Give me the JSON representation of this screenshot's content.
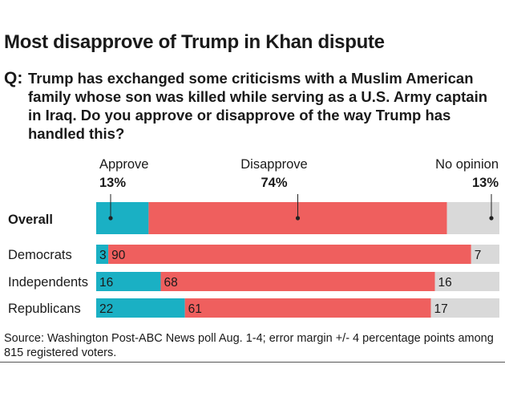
{
  "title": "Most disapprove of Trump in Khan dispute",
  "question": {
    "label": "Q:",
    "text": "Trump has exchanged some criticisms with a Muslim American family whose son was killed while serving as a U.S. Army captain in Iraq. Do you approve or disapprove of the way Trump has handled this?"
  },
  "chart_data": {
    "type": "bar",
    "orientation": "horizontal",
    "stacked": true,
    "series_names": [
      "Approve",
      "Disapprove",
      "No opinion"
    ],
    "series_colors": [
      "#1ab0c4",
      "#ef5f5e",
      "#d9d9d9"
    ],
    "overall": {
      "label": "Overall",
      "values": [
        13,
        74,
        13
      ],
      "value_labels": [
        "13%",
        "74%",
        "13%"
      ]
    },
    "categories": [
      "Democrats",
      "Independents",
      "Republicans"
    ],
    "series": [
      {
        "name": "Approve",
        "values": [
          3,
          16,
          22
        ]
      },
      {
        "name": "Disapprove",
        "values": [
          90,
          68,
          61
        ]
      },
      {
        "name": "No opinion",
        "values": [
          7,
          16,
          17
        ]
      }
    ],
    "xlim": [
      0,
      100
    ]
  },
  "source": "Source: Washington Post-ABC News poll Aug. 1-4; error margin +/- 4 percentage points among 815 registered voters."
}
